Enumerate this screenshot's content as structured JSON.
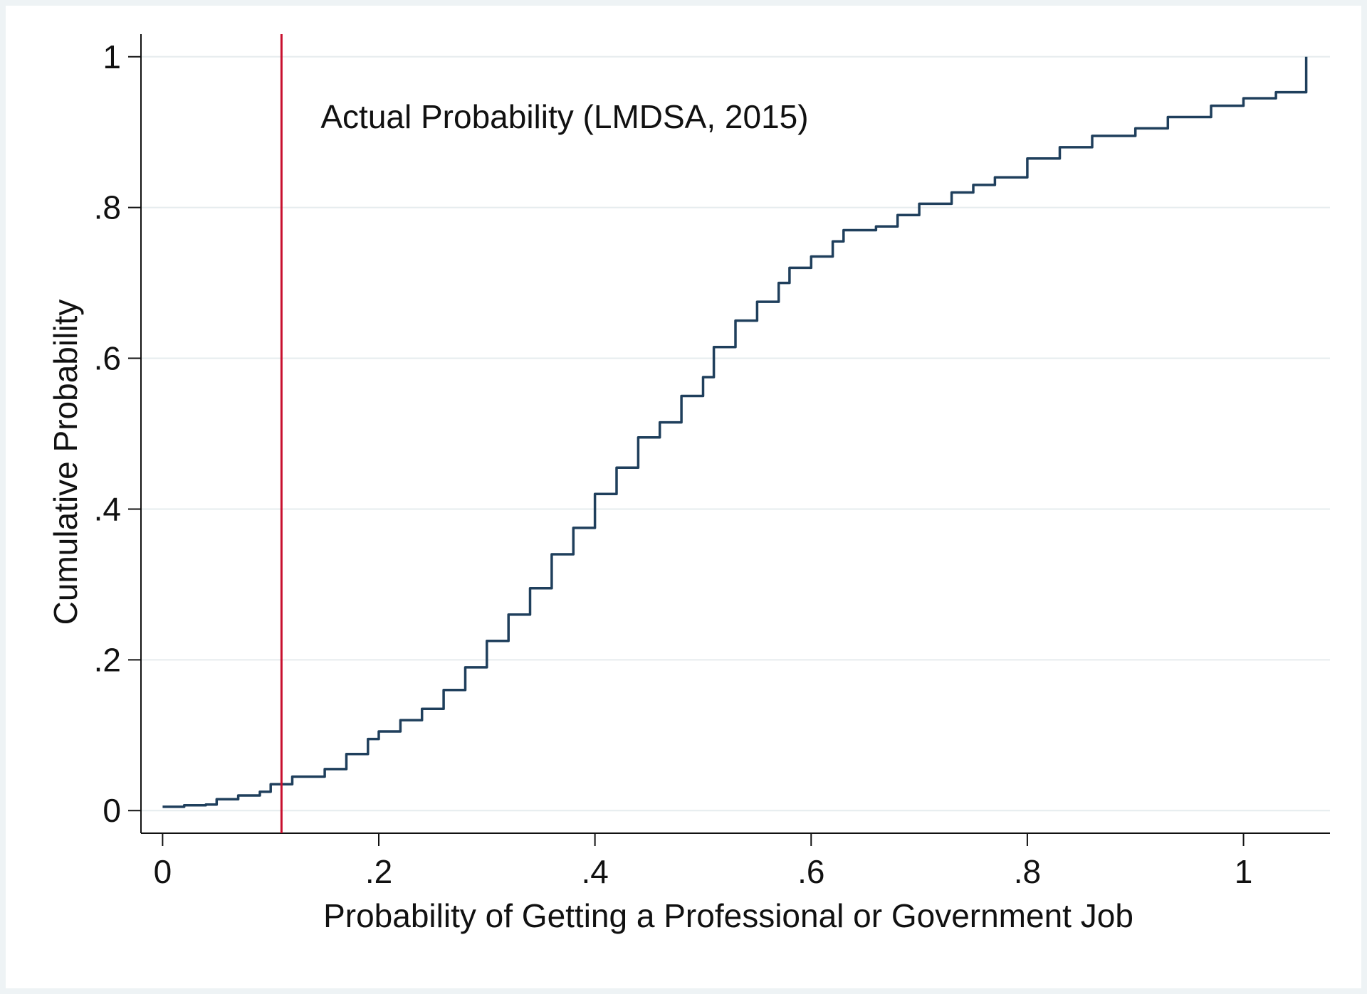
{
  "chart_data": {
    "type": "line",
    "title": "",
    "xlabel": "Probability of Getting a Professional or Government Job",
    "ylabel": "Cumulative Probability",
    "xlim": [
      -0.02,
      1.08
    ],
    "ylim": [
      -0.03,
      1.03
    ],
    "xticks": [
      0,
      0.2,
      0.4,
      0.6,
      0.8,
      1
    ],
    "xtick_labels": [
      "0",
      ".2",
      ".4",
      ".6",
      ".8",
      "1"
    ],
    "yticks": [
      0,
      0.2,
      0.4,
      0.6,
      0.8,
      1
    ],
    "ytick_labels": [
      "0",
      ".2",
      ".4",
      ".6",
      ".8",
      "1"
    ],
    "grid": "horizontal",
    "colors": {
      "curve": "#1f3f5c",
      "reference_line": "#c8102e",
      "grid": "#e6ecee",
      "axis": "#111111"
    },
    "reference_line": {
      "x": 0.11,
      "label": "Actual Probability (LMDSA, 2015)"
    },
    "series": [
      {
        "x": [
          0.0,
          0.02,
          0.04,
          0.05,
          0.07,
          0.09,
          0.1,
          0.12,
          0.15,
          0.17,
          0.19,
          0.2,
          0.22,
          0.24,
          0.26,
          0.28,
          0.3,
          0.32,
          0.34,
          0.36,
          0.38,
          0.4,
          0.42,
          0.44,
          0.46,
          0.48,
          0.5,
          0.51,
          0.53,
          0.55,
          0.57,
          0.58,
          0.6,
          0.62,
          0.63,
          0.66,
          0.68,
          0.7,
          0.73,
          0.75,
          0.77,
          0.8,
          0.83,
          0.86,
          0.9,
          0.93,
          0.97,
          1.0,
          1.03,
          1.058,
          1.058
        ],
        "y": [
          0.005,
          0.007,
          0.008,
          0.015,
          0.02,
          0.025,
          0.035,
          0.045,
          0.055,
          0.075,
          0.095,
          0.105,
          0.12,
          0.135,
          0.16,
          0.19,
          0.225,
          0.26,
          0.295,
          0.34,
          0.375,
          0.42,
          0.455,
          0.495,
          0.515,
          0.55,
          0.575,
          0.615,
          0.65,
          0.675,
          0.7,
          0.72,
          0.735,
          0.755,
          0.77,
          0.775,
          0.79,
          0.805,
          0.82,
          0.83,
          0.84,
          0.865,
          0.88,
          0.895,
          0.905,
          0.92,
          0.935,
          0.945,
          0.953,
          0.955,
          1.0
        ]
      }
    ]
  }
}
